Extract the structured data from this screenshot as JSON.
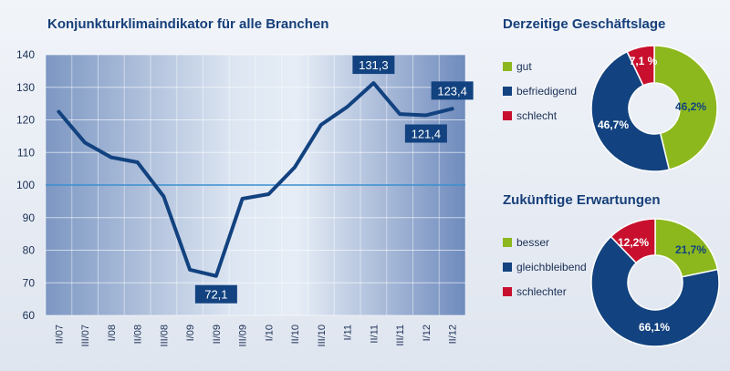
{
  "colors": {
    "line": "#12427f",
    "gut": "#8cb81e",
    "befriedigend": "#12427f",
    "schlecht": "#c8102e",
    "reference_line": "#3a8fd0"
  },
  "chart_data": [
    {
      "type": "line",
      "title": "Konjunkturklimaindikator für alle Branchen",
      "xlabel": "",
      "ylabel": "",
      "ylim": [
        60,
        140
      ],
      "y_ticks": [
        60,
        70,
        80,
        90,
        100,
        110,
        120,
        130,
        140
      ],
      "reference_line": 100,
      "grid": true,
      "categories": [
        "II/07",
        "III/07",
        "I/08",
        "II/08",
        "III/08",
        "I/09",
        "II/09",
        "III/09",
        "I/10",
        "II/10",
        "III/10",
        "I/11",
        "II/11",
        "III/11",
        "I/12",
        "II/12"
      ],
      "series": [
        {
          "name": "",
          "values": [
            122.5,
            113,
            108.5,
            107,
            96.5,
            74,
            72.1,
            95.8,
            97.2,
            105.5,
            118.5,
            124,
            131.3,
            121.8,
            121.4,
            123.4
          ]
        }
      ],
      "annotations": [
        {
          "category": "II/09",
          "label": "72,1",
          "position": "below"
        },
        {
          "category": "II/11",
          "label": "131,3",
          "position": "above"
        },
        {
          "category": "I/12",
          "label": "121,4",
          "position": "below"
        },
        {
          "category": "II/12",
          "label": "123,4",
          "position": "above"
        }
      ]
    },
    {
      "type": "pie",
      "title": "Derzeitige Geschäftslage",
      "categories": [
        "gut",
        "befriedigend",
        "schlecht"
      ],
      "values": [
        46.2,
        46.7,
        7.1
      ],
      "labels": [
        "46,2%",
        "46,7%",
        "7,1 %"
      ],
      "colors": [
        "#8cb81e",
        "#12427f",
        "#c8102e"
      ]
    },
    {
      "type": "pie",
      "title": "Zukünftige Erwartungen",
      "categories": [
        "besser",
        "gleichbleibend",
        "schlechter"
      ],
      "values": [
        21.7,
        66.1,
        12.2
      ],
      "labels": [
        "21,7%",
        "66,1%",
        "12,2%"
      ],
      "colors": [
        "#8cb81e",
        "#12427f",
        "#c8102e"
      ]
    }
  ]
}
